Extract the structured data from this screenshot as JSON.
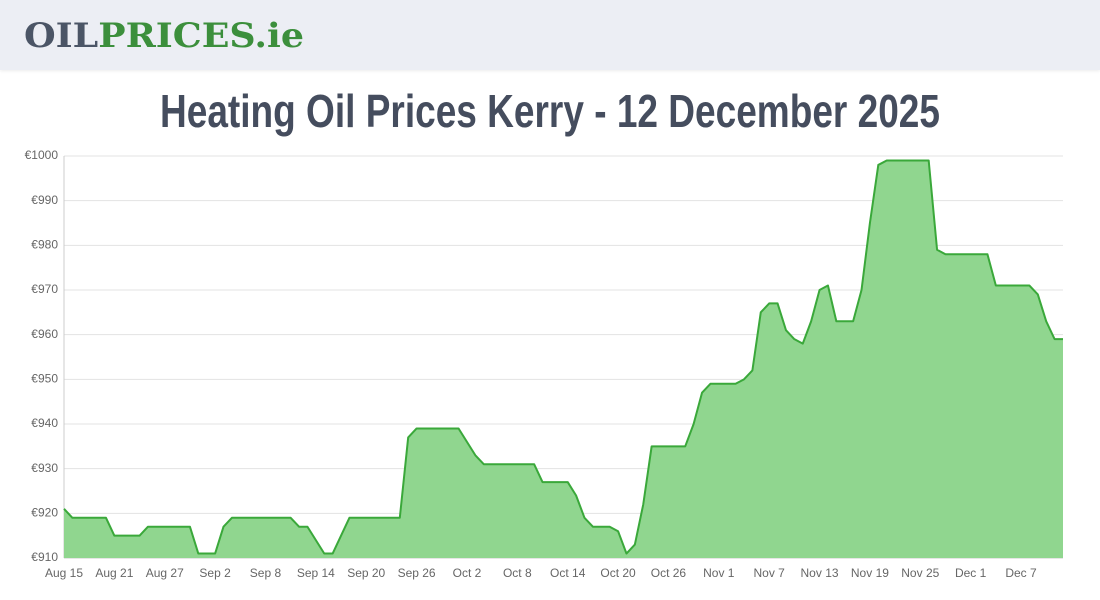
{
  "header": {
    "logo": {
      "part1": "OIL",
      "part2": "PRICES",
      "part3": ".ie"
    }
  },
  "chart_data": {
    "type": "area",
    "title": "Heating Oil Prices Kerry - 12 December 2025",
    "color": "#3aa83a",
    "fill": "#90d68f",
    "grid": true,
    "ylim": [
      910,
      1000
    ],
    "yticks": [
      {
        "value": 910,
        "label": "€910"
      },
      {
        "value": 920,
        "label": "€920"
      },
      {
        "value": 930,
        "label": "€930"
      },
      {
        "value": 940,
        "label": "€940"
      },
      {
        "value": 950,
        "label": "€950"
      },
      {
        "value": 960,
        "label": "€960"
      },
      {
        "value": 970,
        "label": "€970"
      },
      {
        "value": 980,
        "label": "€980"
      },
      {
        "value": 990,
        "label": "€990"
      },
      {
        "value": 1000,
        "label": "€1000"
      }
    ],
    "categories": [
      "Aug 15",
      null,
      null,
      null,
      null,
      null,
      "Aug 21",
      null,
      null,
      null,
      null,
      null,
      "Aug 27",
      null,
      null,
      null,
      null,
      null,
      "Sep 2",
      null,
      null,
      null,
      null,
      null,
      "Sep 8",
      null,
      null,
      null,
      null,
      null,
      "Sep 14",
      null,
      null,
      null,
      null,
      null,
      "Sep 20",
      null,
      null,
      null,
      null,
      null,
      "Sep 26",
      null,
      null,
      null,
      null,
      null,
      "Oct 2",
      null,
      null,
      null,
      null,
      null,
      "Oct 8",
      null,
      null,
      null,
      null,
      null,
      "Oct 14",
      null,
      null,
      null,
      null,
      null,
      "Oct 20",
      null,
      null,
      null,
      null,
      null,
      "Oct 26",
      null,
      null,
      null,
      null,
      null,
      "Nov 1",
      null,
      null,
      null,
      null,
      null,
      "Nov 7",
      null,
      null,
      null,
      null,
      null,
      "Nov 13",
      null,
      null,
      null,
      null,
      null,
      "Nov 19",
      null,
      null,
      null,
      null,
      null,
      "Nov 25",
      null,
      null,
      null,
      null,
      null,
      "Dec 1",
      null,
      null,
      null,
      null,
      null,
      "Dec 7",
      null,
      null,
      null,
      null,
      null
    ],
    "values": [
      921,
      919,
      919,
      919,
      919,
      919,
      915,
      915,
      915,
      915,
      917,
      917,
      917,
      917,
      917,
      917,
      911,
      911,
      911,
      917,
      919,
      919,
      919,
      919,
      919,
      919,
      919,
      919,
      917,
      917,
      914,
      911,
      911,
      915,
      919,
      919,
      919,
      919,
      919,
      919,
      919,
      937,
      939,
      939,
      939,
      939,
      939,
      939,
      936,
      933,
      931,
      931,
      931,
      931,
      931,
      931,
      931,
      927,
      927,
      927,
      927,
      924,
      919,
      917,
      917,
      917,
      916,
      911,
      913,
      922,
      935,
      935,
      935,
      935,
      935,
      940,
      947,
      949,
      949,
      949,
      949,
      950,
      952,
      965,
      967,
      967,
      961,
      959,
      958,
      963,
      970,
      971,
      963,
      963,
      963,
      970,
      985,
      998,
      999,
      999,
      999,
      999,
      999,
      999,
      979,
      978,
      978,
      978,
      978,
      978,
      978,
      971,
      971,
      971,
      971,
      971,
      969,
      963,
      959,
      959
    ]
  }
}
